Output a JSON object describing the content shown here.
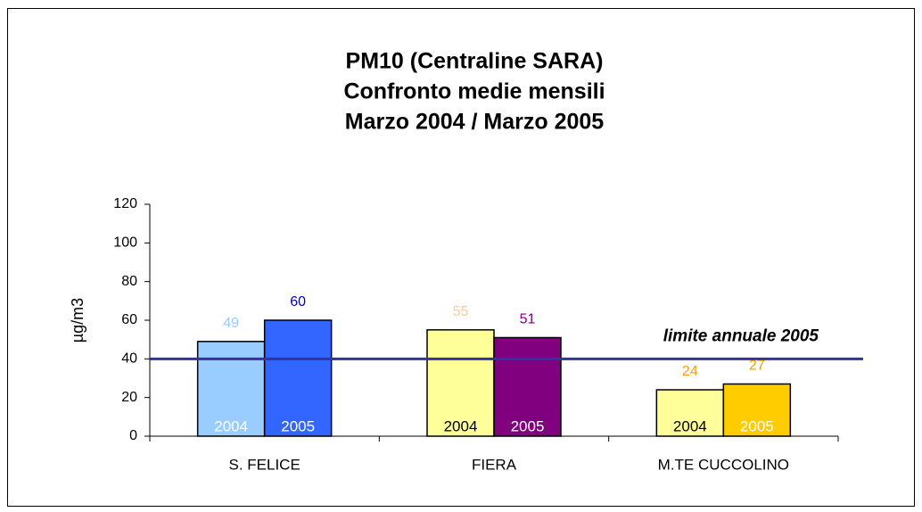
{
  "chart_data": {
    "type": "bar",
    "title": [
      "PM10 (Centraline SARA)",
      "Confronto medie mensili",
      "Marzo 2004 / Marzo 2005"
    ],
    "y_label": "µg/m3",
    "categories": [
      "S. FELICE",
      "FIERA",
      "M.TE CUCCOLINO"
    ],
    "series": [
      {
        "name": "2004",
        "values": [
          49,
          55,
          24
        ],
        "colors": [
          "#99ccff",
          "#ffff99",
          "#ffff99"
        ],
        "label_colors": [
          "#99ccff",
          "#ffcc99",
          "#ff9900"
        ],
        "name_colors": [
          "#ffffff",
          "#000000",
          "#000000"
        ]
      },
      {
        "name": "2005",
        "values": [
          60,
          51,
          27
        ],
        "colors": [
          "#3366ff",
          "#800080",
          "#ffcc00"
        ],
        "label_colors": [
          "#0000cc",
          "#800080",
          "#ff9900"
        ],
        "name_colors": [
          "#ffffff",
          "#ffffff",
          "#ffffff"
        ]
      }
    ],
    "ylim": [
      0,
      120
    ],
    "yticks": [
      0,
      20,
      40,
      60,
      80,
      100,
      120
    ],
    "grid": false,
    "reference_line": {
      "value": 40,
      "label": "limite annuale 2005",
      "color": "#333399"
    }
  }
}
